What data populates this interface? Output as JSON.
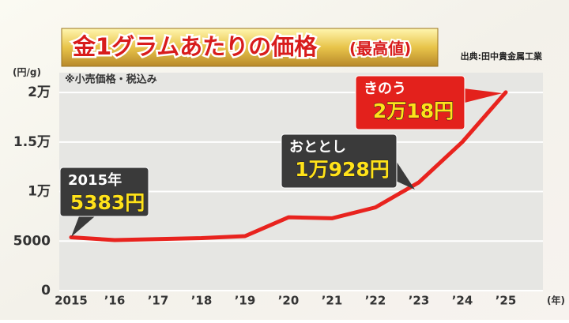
{
  "chart_data": {
    "type": "line",
    "title": "金1グラムあたりの価格",
    "title_note": "(最高値)",
    "source": "出典:田中貴金属工業",
    "note": "※小売価格・税込み",
    "y_unit": "(円/g)",
    "x_unit": "(年)",
    "categories": [
      "2015",
      "’16",
      "’17",
      "’18",
      "’19",
      "’20",
      "’21",
      "’22",
      "’23",
      "’24",
      "’25"
    ],
    "series": [
      {
        "name": "価格",
        "color": "#e8231e",
        "values": [
          5383,
          5100,
          5200,
          5300,
          5500,
          7400,
          7300,
          8400,
          10928,
          15000,
          20018
        ],
        "value_labels": [
          "5383円",
          null,
          null,
          null,
          null,
          null,
          null,
          null,
          "1万928円",
          null,
          "2万18円"
        ]
      }
    ],
    "annotations": [
      "2015年",
      "おととし",
      "きのう"
    ],
    "ylim": [
      0,
      22000
    ],
    "yticks": [
      0,
      5000,
      {
        "value": 10000,
        "label": "1万"
      },
      {
        "value": 15000,
        "label": "1.5万"
      },
      {
        "value": 20000,
        "label": "2万"
      }
    ],
    "grid": true
  }
}
